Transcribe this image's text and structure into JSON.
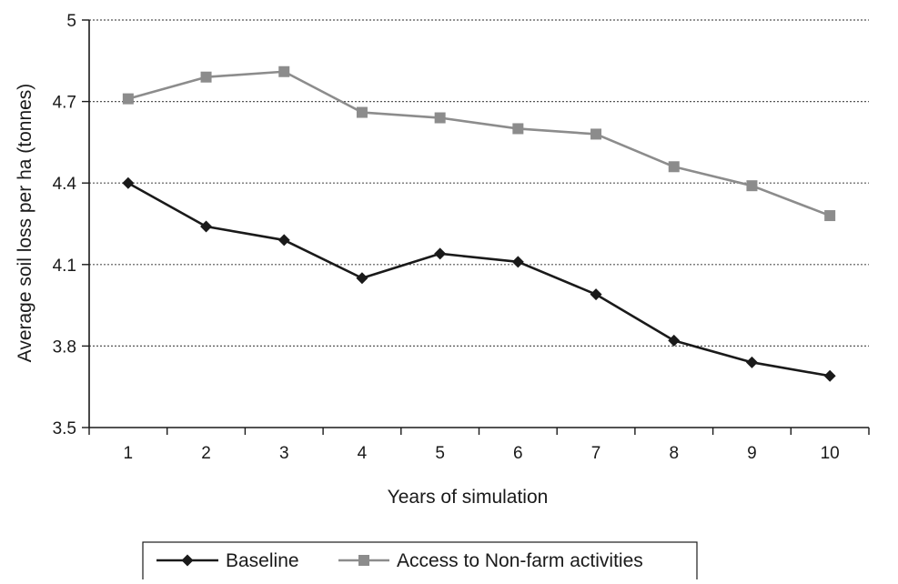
{
  "chart_data": {
    "type": "line",
    "title": "",
    "xlabel": "Years of simulation",
    "ylabel": "Average soil loss per ha (tonnes)",
    "categories": [
      "1",
      "2",
      "3",
      "4",
      "5",
      "6",
      "7",
      "8",
      "9",
      "10"
    ],
    "ylim": [
      3.5,
      5
    ],
    "yticks": [
      "3.5",
      "3.8",
      "4.1",
      "4.4",
      "4.7",
      "5"
    ],
    "grid": "horizontal-dotted",
    "legend_position": "bottom",
    "series": [
      {
        "name": "Baseline",
        "marker": "diamond",
        "color": "#1a1a1a",
        "values": [
          4.4,
          4.24,
          4.19,
          4.05,
          4.14,
          4.11,
          3.99,
          3.82,
          3.74,
          3.69
        ]
      },
      {
        "name": "Access to Non-farm activities",
        "marker": "square",
        "color": "#8c8c8c",
        "values": [
          4.71,
          4.79,
          4.81,
          4.66,
          4.64,
          4.6,
          4.58,
          4.46,
          4.39,
          4.28
        ]
      }
    ]
  }
}
